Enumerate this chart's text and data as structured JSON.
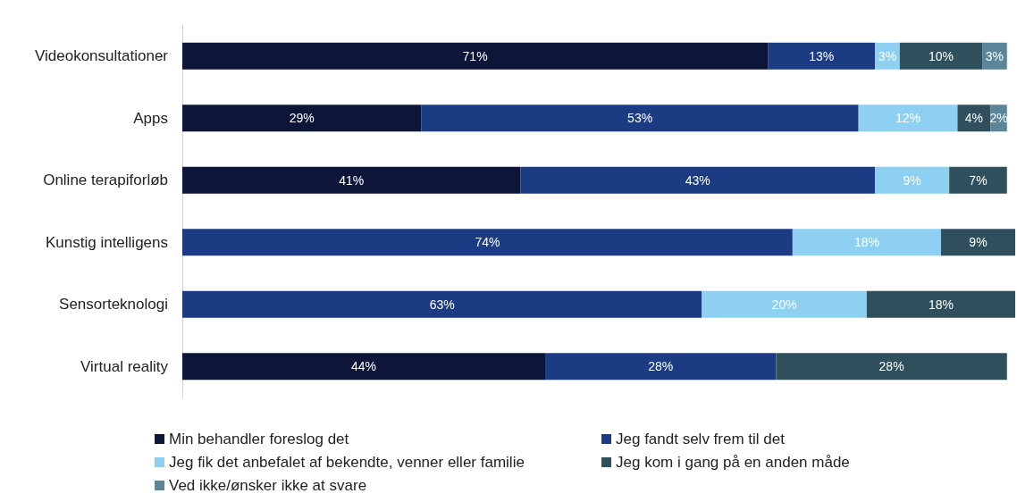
{
  "chart_data": {
    "type": "bar",
    "orientation": "horizontal",
    "stacked": true,
    "legend": "bottom",
    "categories": [
      "Videokonsultationer",
      "Apps",
      "Online terapiforløb",
      "Kunstig intelligens",
      "Sensorteknologi",
      "Virtual reality"
    ],
    "series": [
      {
        "name": "Min behandler foreslog det",
        "color": "#0d1538",
        "values": [
          71,
          29,
          41,
          null,
          null,
          44
        ],
        "value_labels": [
          "71%",
          "29%",
          "41%",
          null,
          null,
          "44%"
        ]
      },
      {
        "name": "Jeg fandt selv frem til det",
        "color": "#1b3c82",
        "values": [
          13,
          53,
          43,
          74,
          63,
          28
        ],
        "value_labels": [
          "13%",
          "53%",
          "43%",
          "74%",
          "63%",
          "28%"
        ]
      },
      {
        "name": "Jeg fik det anbefalet af bekendte, venner eller familie",
        "color": "#8dd0f2",
        "values": [
          3,
          12,
          9,
          18,
          20,
          null
        ],
        "value_labels": [
          "3%",
          "12%",
          "9%",
          "18%",
          "20%",
          null
        ]
      },
      {
        "name": "Jeg kom i gang på en anden måde",
        "color": "#2f4f5c",
        "values": [
          10,
          4,
          7,
          9,
          18,
          28
        ],
        "value_labels": [
          "10%",
          "4%",
          "7%",
          "9%",
          "18%",
          "28%"
        ]
      },
      {
        "name": "Ved ikke/ønsker ikke at svare",
        "color": "#5b8598",
        "values": [
          3,
          2,
          null,
          null,
          null,
          null
        ],
        "value_labels": [
          "3%",
          "2%",
          null,
          null,
          null,
          null
        ]
      }
    ]
  }
}
